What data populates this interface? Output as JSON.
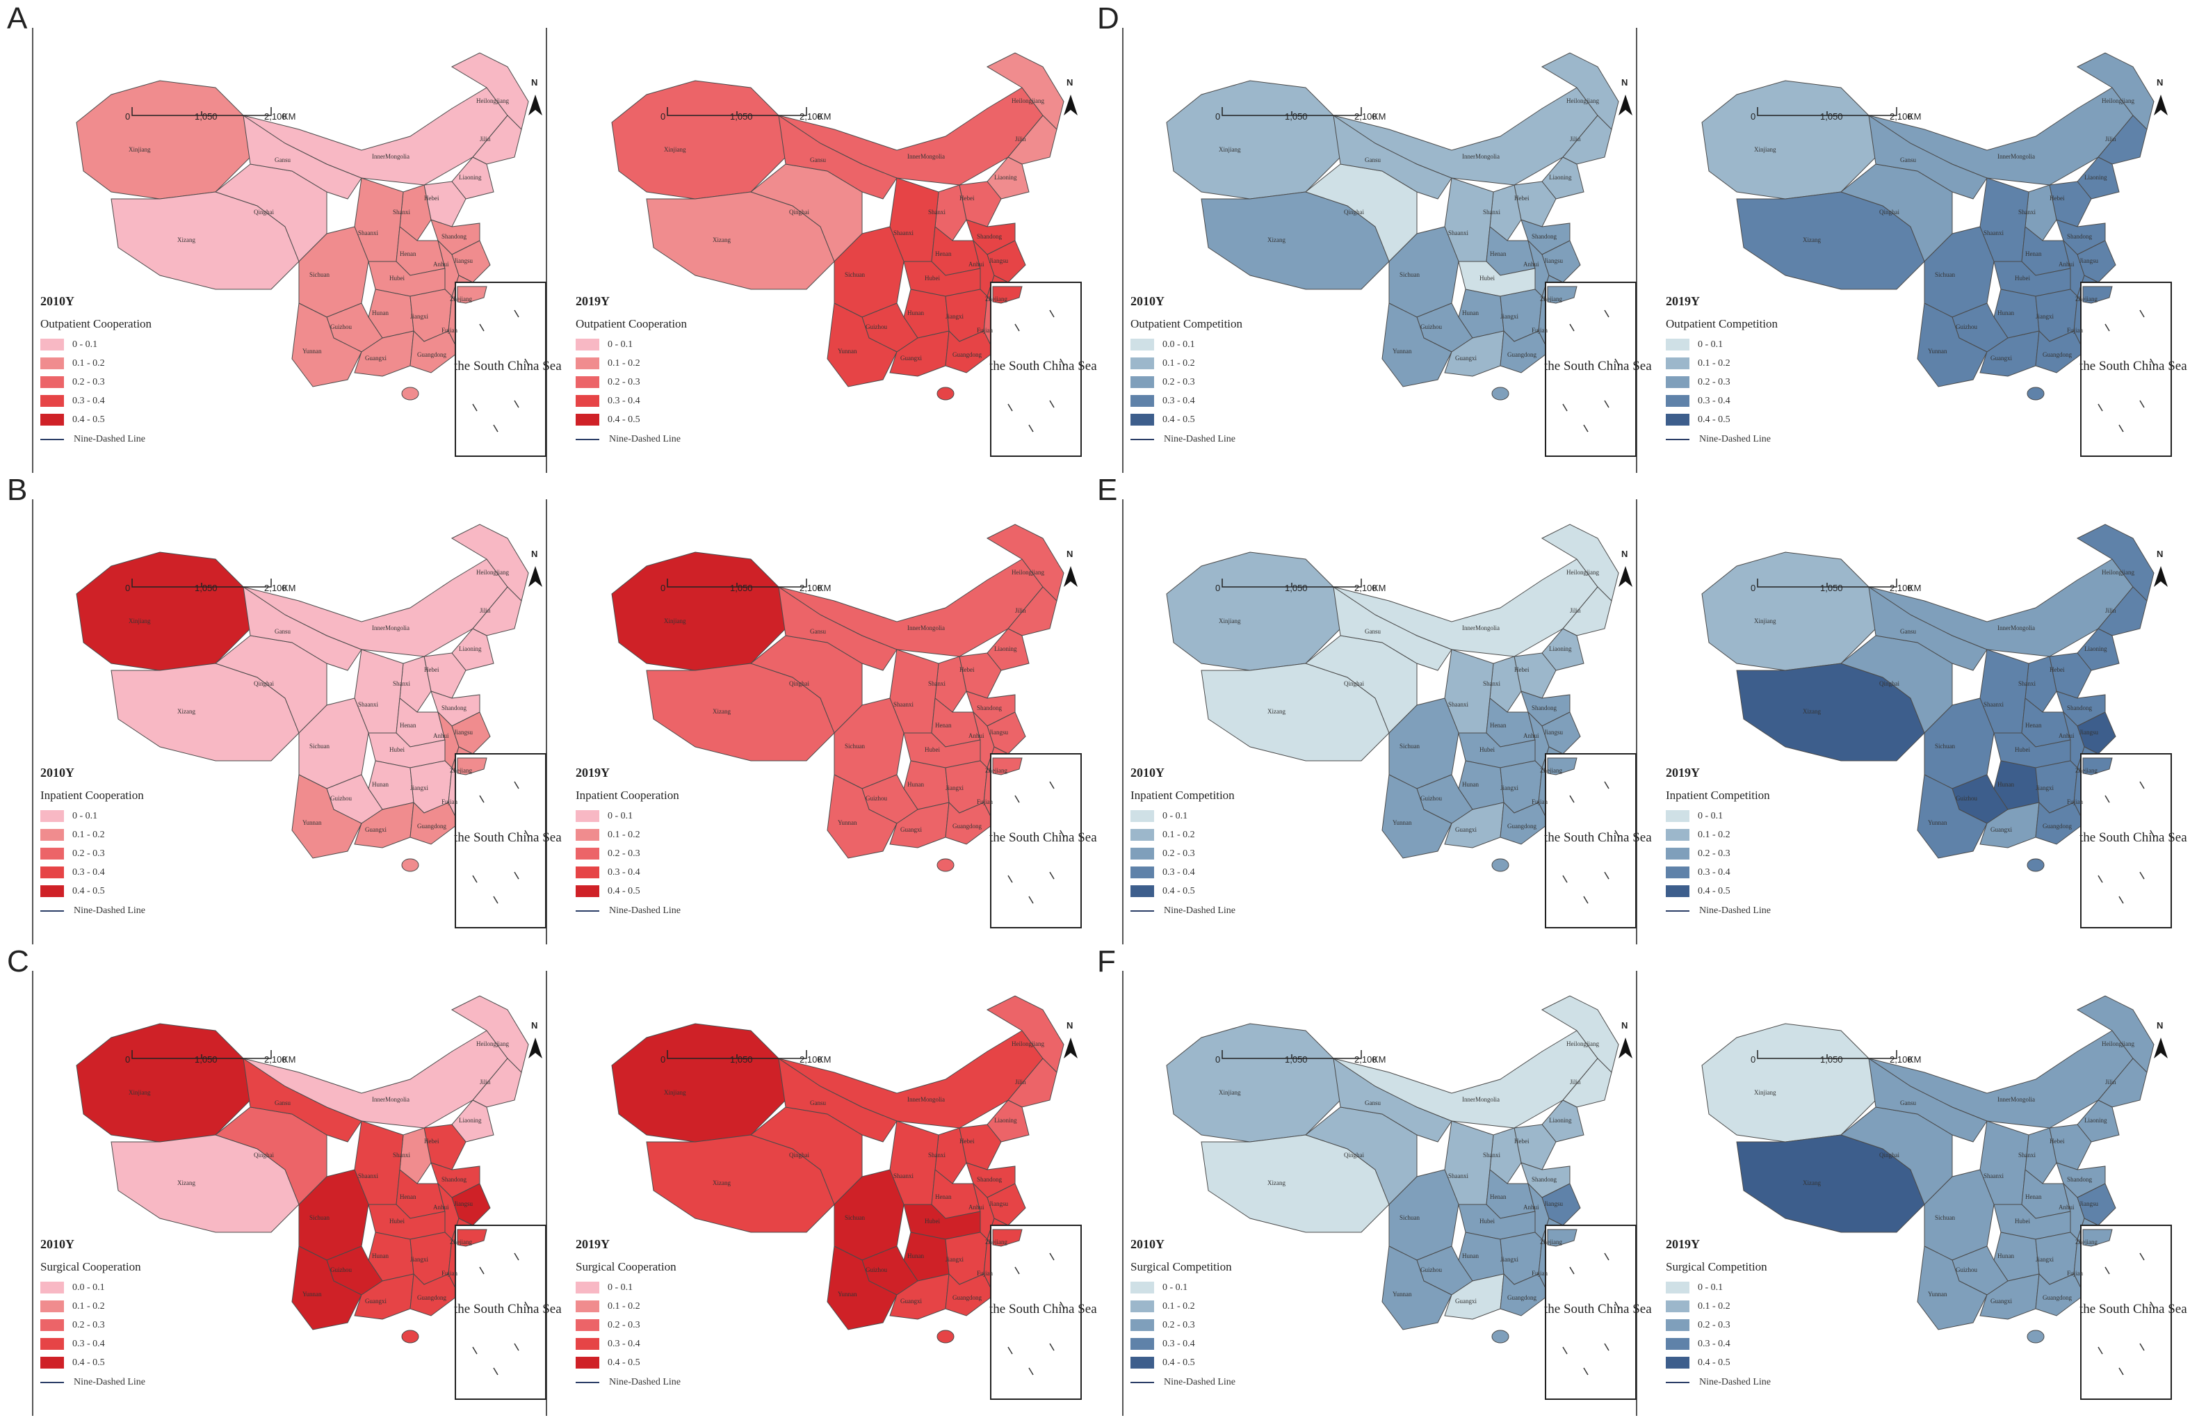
{
  "panels": [
    {
      "letter": "A",
      "scheme": "red",
      "metric": "Outpatient Cooperation",
      "maps": [
        {
          "year": "2010Y",
          "legend_title": "Outpatient Cooperation",
          "legend": [
            "0 - 0.1",
            "0.1 - 0.2",
            "0.2 - 0.3",
            "0.3 - 0.4",
            "0.4 - 0.5"
          ]
        },
        {
          "year": "2019Y",
          "legend_title": "Outpatient Cooperation",
          "legend": [
            "0 - 0.1",
            "0.1 - 0.2",
            "0.2 - 0.3",
            "0.3 - 0.4",
            "0.4 - 0.5"
          ]
        }
      ]
    },
    {
      "letter": "B",
      "scheme": "red",
      "metric": "Inpatient Cooperation",
      "maps": [
        {
          "year": "2010Y",
          "legend_title": "Inpatient Cooperation",
          "legend": [
            "0 - 0.1",
            "0.1 - 0.2",
            "0.2 - 0.3",
            "0.3 - 0.4",
            "0.4 - 0.5"
          ]
        },
        {
          "year": "2019Y",
          "legend_title": "Inpatient Cooperation",
          "legend": [
            "0 - 0.1",
            "0.1 - 0.2",
            "0.2 - 0.3",
            "0.3 - 0.4",
            "0.4 - 0.5"
          ]
        }
      ]
    },
    {
      "letter": "C",
      "scheme": "red",
      "metric": "Surgical Cooperation",
      "maps": [
        {
          "year": "2010Y",
          "legend_title": "Surgical Cooperation",
          "legend": [
            "0.0 - 0.1",
            "0.1 - 0.2",
            "0.2 - 0.3",
            "0.3 - 0.4",
            "0.4 - 0.5"
          ]
        },
        {
          "year": "2019Y",
          "legend_title": "Surgical Cooperation",
          "legend": [
            "0 - 0.1",
            "0.1 - 0.2",
            "0.2 - 0.3",
            "0.3 - 0.4",
            "0.4 - 0.5"
          ]
        }
      ]
    },
    {
      "letter": "D",
      "scheme": "blue",
      "metric": "Outpatient Competition",
      "maps": [
        {
          "year": "2010Y",
          "legend_title": "Outpatient Competition",
          "legend": [
            "0.0 - 0.1",
            "0.1 - 0.2",
            "0.2 - 0.3",
            "0.3 - 0.4",
            "0.4 - 0.5"
          ]
        },
        {
          "year": "2019Y",
          "legend_title": "Outpatient Competition",
          "legend": [
            "0 - 0.1",
            "0.1 - 0.2",
            "0.2 - 0.3",
            "0.3 - 0.4",
            "0.4 - 0.5"
          ]
        }
      ]
    },
    {
      "letter": "E",
      "scheme": "blue",
      "metric": "Inpatient Competition",
      "maps": [
        {
          "year": "2010Y",
          "legend_title": "Inpatient Competition",
          "legend": [
            "0 - 0.1",
            "0.1 - 0.2",
            "0.2 - 0.3",
            "0.3 - 0.4",
            "0.4 - 0.5"
          ]
        },
        {
          "year": "2019Y",
          "legend_title": "Inpatient Competition",
          "legend": [
            "0 - 0.1",
            "0.1 - 0.2",
            "0.2 - 0.3",
            "0.3 - 0.4",
            "0.4 - 0.5"
          ]
        }
      ]
    },
    {
      "letter": "F",
      "scheme": "blue",
      "metric": "Surgical Competition",
      "maps": [
        {
          "year": "2010Y",
          "legend_title": "Surgical Competition",
          "legend": [
            "0 - 0.1",
            "0.1 - 0.2",
            "0.2 - 0.3",
            "0.3 - 0.4",
            "0.4 - 0.5"
          ]
        },
        {
          "year": "2019Y",
          "legend_title": "Surgical Competition",
          "legend": [
            "0 - 0.1",
            "0.1 - 0.2",
            "0.2 - 0.3",
            "0.3 - 0.4",
            "0.4 - 0.5"
          ]
        }
      ]
    }
  ],
  "common": {
    "nine_dashed_line": "Nine-Dashed Line",
    "south_china_sea": "the South China Sea",
    "north": "N",
    "scale_ticks": [
      "0",
      "1,050",
      "2,100"
    ],
    "scale_unit": "KM"
  },
  "province_labels": [
    "Xinjiang",
    "Qinghai",
    "Xizang",
    "Gansu",
    "InnerMongolia",
    "Heilongjiang",
    "Jilin",
    "Liaoning",
    "Hebei",
    "Shanxi",
    "Shaanxi",
    "Henan",
    "Shandong",
    "Sichuan",
    "Hubei",
    "Anhui",
    "Jiangsu",
    "Hunan",
    "Jiangxi",
    "Zhejiang",
    "Guizhou",
    "Yunnan",
    "Guangxi",
    "Guangdong",
    "Fujian"
  ],
  "colors": {
    "red": [
      "#f8b8c4",
      "#f08c8e",
      "#ec6468",
      "#e64446",
      "#cf2127"
    ],
    "blue": [
      "#cfe0e6",
      "#9cb7cb",
      "#7f9fbb",
      "#5f82a9",
      "#3d5e8c"
    ]
  },
  "map_levels": {
    "A-2010Y": {
      "Xinjiang": 2,
      "Xizang": 1,
      "Qinghai": 1,
      "Gansu": 1,
      "InnerMongolia": 1,
      "Heilongjiang": 1,
      "Jilin": 1,
      "Liaoning": 1,
      "Hebei": 1,
      "Shanxi": 2,
      "Shaanxi": 2,
      "Henan": 2,
      "Shandong": 2,
      "Sichuan": 2,
      "Hubei": 2,
      "Anhui": 2,
      "Jiangsu": 2,
      "Hunan": 2,
      "Jiangxi": 2,
      "Zhejiang": 2,
      "Guizhou": 2,
      "Yunnan": 2,
      "Guangxi": 2,
      "Guangdong": 2,
      "Fujian": 2
    },
    "A-2019Y": {
      "Xinjiang": 3,
      "Xizang": 2,
      "Qinghai": 2,
      "Gansu": 3,
      "InnerMongolia": 3,
      "Heilongjiang": 2,
      "Jilin": 2,
      "Liaoning": 2,
      "Hebei": 3,
      "Shanxi": 3,
      "Shaanxi": 4,
      "Henan": 4,
      "Shandong": 4,
      "Sichuan": 4,
      "Hubei": 4,
      "Anhui": 4,
      "Jiangsu": 4,
      "Hunan": 4,
      "Jiangxi": 4,
      "Zhejiang": 4,
      "Guizhou": 4,
      "Yunnan": 4,
      "Guangxi": 4,
      "Guangdong": 4,
      "Fujian": 3
    },
    "B-2010Y": {
      "Xinjiang": 5,
      "Xizang": 1,
      "Qinghai": 1,
      "Gansu": 1,
      "InnerMongolia": 1,
      "Heilongjiang": 1,
      "Jilin": 1,
      "Liaoning": 1,
      "Hebei": 1,
      "Shanxi": 1,
      "Shaanxi": 1,
      "Henan": 1,
      "Shandong": 1,
      "Sichuan": 1,
      "Hubei": 1,
      "Anhui": 2,
      "Jiangsu": 2,
      "Hunan": 1,
      "Jiangxi": 1,
      "Zhejiang": 2,
      "Guizhou": 1,
      "Yunnan": 2,
      "Guangxi": 2,
      "Guangdong": 2,
      "Fujian": 1
    },
    "B-2019Y": {
      "Xinjiang": 5,
      "Xizang": 3,
      "Qinghai": 3,
      "Gansu": 3,
      "InnerMongolia": 3,
      "Heilongjiang": 3,
      "Jilin": 3,
      "Liaoning": 3,
      "Hebei": 3,
      "Shanxi": 3,
      "Shaanxi": 3,
      "Henan": 3,
      "Shandong": 3,
      "Sichuan": 3,
      "Hubei": 3,
      "Anhui": 3,
      "Jiangsu": 3,
      "Hunan": 3,
      "Jiangxi": 3,
      "Zhejiang": 3,
      "Guizhou": 3,
      "Yunnan": 3,
      "Guangxi": 3,
      "Guangdong": 3,
      "Fujian": 3
    },
    "C-2010Y": {
      "Xinjiang": 5,
      "Xizang": 1,
      "Qinghai": 3,
      "Gansu": 4,
      "InnerMongolia": 1,
      "Heilongjiang": 1,
      "Jilin": 1,
      "Liaoning": 1,
      "Hebei": 4,
      "Shanxi": 2,
      "Shaanxi": 4,
      "Henan": 4,
      "Shandong": 4,
      "Sichuan": 5,
      "Hubei": 4,
      "Anhui": 4,
      "Jiangsu": 5,
      "Hunan": 4,
      "Jiangxi": 4,
      "Zhejiang": 4,
      "Guizhou": 5,
      "Yunnan": 5,
      "Guangxi": 4,
      "Guangdong": 4,
      "Fujian": 4
    },
    "C-2019Y": {
      "Xinjiang": 5,
      "Xizang": 4,
      "Qinghai": 4,
      "Gansu": 4,
      "InnerMongolia": 4,
      "Heilongjiang": 3,
      "Jilin": 3,
      "Liaoning": 3,
      "Hebei": 4,
      "Shanxi": 4,
      "Shaanxi": 4,
      "Henan": 4,
      "Shandong": 4,
      "Sichuan": 5,
      "Hubei": 5,
      "Anhui": 4,
      "Jiangsu": 4,
      "Hunan": 5,
      "Jiangxi": 4,
      "Zhejiang": 4,
      "Guizhou": 5,
      "Yunnan": 5,
      "Guangxi": 4,
      "Guangdong": 4,
      "Fujian": 4
    },
    "D-2010Y": {
      "Xinjiang": 2,
      "Xizang": 3,
      "Qinghai": 1,
      "Gansu": 2,
      "InnerMongolia": 2,
      "Heilongjiang": 2,
      "Jilin": 2,
      "Liaoning": 2,
      "Hebei": 2,
      "Shanxi": 2,
      "Shaanxi": 2,
      "Henan": 3,
      "Shandong": 3,
      "Sichuan": 3,
      "Hubei": 1,
      "Anhui": 3,
      "Jiangsu": 3,
      "Hunan": 3,
      "Jiangxi": 3,
      "Zhejiang": 3,
      "Guizhou": 3,
      "Yunnan": 3,
      "Guangxi": 2,
      "Guangdong": 3,
      "Fujian": 3
    },
    "D-2019Y": {
      "Xinjiang": 2,
      "Xizang": 4,
      "Qinghai": 3,
      "Gansu": 3,
      "InnerMongolia": 3,
      "Heilongjiang": 3,
      "Jilin": 4,
      "Liaoning": 4,
      "Hebei": 4,
      "Shanxi": 3,
      "Shaanxi": 4,
      "Henan": 4,
      "Shandong": 4,
      "Sichuan": 4,
      "Hubei": 4,
      "Anhui": 4,
      "Jiangsu": 4,
      "Hunan": 4,
      "Jiangxi": 4,
      "Zhejiang": 4,
      "Guizhou": 4,
      "Yunnan": 4,
      "Guangxi": 4,
      "Guangdong": 4,
      "Fujian": 4
    },
    "E-2010Y": {
      "Xinjiang": 2,
      "Xizang": 1,
      "Qinghai": 1,
      "Gansu": 1,
      "InnerMongolia": 1,
      "Heilongjiang": 1,
      "Jilin": 1,
      "Liaoning": 2,
      "Hebei": 2,
      "Shanxi": 2,
      "Shaanxi": 2,
      "Henan": 3,
      "Shandong": 3,
      "Sichuan": 3,
      "Hubei": 3,
      "Anhui": 3,
      "Jiangsu": 3,
      "Hunan": 3,
      "Jiangxi": 3,
      "Zhejiang": 3,
      "Guizhou": 3,
      "Yunnan": 3,
      "Guangxi": 2,
      "Guangdong": 3,
      "Fujian": 3
    },
    "E-2019Y": {
      "Xinjiang": 2,
      "Xizang": 5,
      "Qinghai": 3,
      "Gansu": 3,
      "InnerMongolia": 3,
      "Heilongjiang": 4,
      "Jilin": 4,
      "Liaoning": 4,
      "Hebei": 4,
      "Shanxi": 4,
      "Shaanxi": 4,
      "Henan": 4,
      "Shandong": 4,
      "Sichuan": 4,
      "Hubei": 4,
      "Anhui": 4,
      "Jiangsu": 5,
      "Hunan": 5,
      "Jiangxi": 4,
      "Zhejiang": 4,
      "Guizhou": 5,
      "Yunnan": 4,
      "Guangxi": 3,
      "Guangdong": 4,
      "Fujian": 4
    },
    "F-2010Y": {
      "Xinjiang": 2,
      "Xizang": 1,
      "Qinghai": 2,
      "Gansu": 2,
      "InnerMongolia": 1,
      "Heilongjiang": 1,
      "Jilin": 1,
      "Liaoning": 2,
      "Hebei": 2,
      "Shanxi": 2,
      "Shaanxi": 2,
      "Henan": 3,
      "Shandong": 2,
      "Sichuan": 3,
      "Hubei": 3,
      "Anhui": 3,
      "Jiangsu": 4,
      "Hunan": 3,
      "Jiangxi": 3,
      "Zhejiang": 3,
      "Guizhou": 3,
      "Yunnan": 3,
      "Guangxi": 1,
      "Guangdong": 3,
      "Fujian": 3
    },
    "F-2019Y": {
      "Xinjiang": 1,
      "Xizang": 5,
      "Qinghai": 3,
      "Gansu": 3,
      "InnerMongolia": 3,
      "Heilongjiang": 3,
      "Jilin": 3,
      "Liaoning": 3,
      "Hebei": 3,
      "Shanxi": 3,
      "Shaanxi": 3,
      "Henan": 3,
      "Shandong": 3,
      "Sichuan": 3,
      "Hubei": 3,
      "Anhui": 3,
      "Jiangsu": 4,
      "Hunan": 3,
      "Jiangxi": 3,
      "Zhejiang": 3,
      "Guizhou": 3,
      "Yunnan": 3,
      "Guangxi": 3,
      "Guangdong": 3,
      "Fujian": 3
    }
  }
}
